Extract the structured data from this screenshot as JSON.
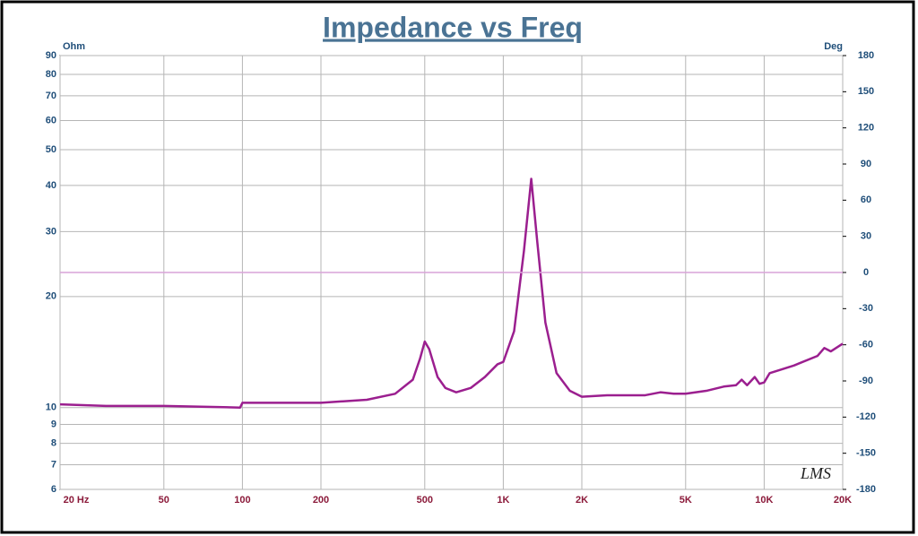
{
  "chart_data": {
    "type": "line",
    "title": "Impedance vs Freq",
    "y_label": "Ohm",
    "y2_label": "Deg",
    "logo": "LMS",
    "xscale": "log",
    "yscale": "log",
    "grid": true,
    "xlim": [
      20,
      20000
    ],
    "ylim": [
      6,
      90
    ],
    "y2lim": [
      -180,
      180
    ],
    "xticks": [
      {
        "value": 20,
        "label": "20  Hz"
      },
      50,
      100,
      200,
      500,
      {
        "value": 1000,
        "label": "1K"
      },
      {
        "value": 2000,
        "label": "2K"
      },
      {
        "value": 5000,
        "label": "5K"
      },
      {
        "value": 10000,
        "label": "10K"
      },
      {
        "value": 20000,
        "label": "20K"
      }
    ],
    "yticks": [
      6,
      7,
      8,
      9,
      10,
      20,
      30,
      40,
      50,
      60,
      70,
      80,
      90
    ],
    "y2ticks": [
      -180,
      -150,
      -120,
      -90,
      -60,
      -30,
      0,
      30,
      60,
      90,
      120,
      150,
      180
    ],
    "series": [
      {
        "color": "#9b1f8f",
        "axis": "y",
        "x": [
          20,
          30,
          50,
          98,
          100,
          200,
          300,
          385,
          450,
          480,
          500,
          520,
          560,
          600,
          660,
          750,
          850,
          950,
          1000,
          1100,
          1200,
          1280,
          1350,
          1450,
          1600,
          1800,
          2000,
          2500,
          3500,
          4000,
          4500,
          5000,
          6000,
          7000,
          7800,
          8200,
          8600,
          9200,
          9600,
          10000,
          10500,
          13000,
          16000,
          17000,
          18000,
          20000
        ],
        "values": [
          10.2,
          10.1,
          10.1,
          10.0,
          10.3,
          10.3,
          10.5,
          10.9,
          11.9,
          13.6,
          15.1,
          14.4,
          12.1,
          11.3,
          11.0,
          11.3,
          12.1,
          13.1,
          13.3,
          16.1,
          26.6,
          41.7,
          28.1,
          17.0,
          12.4,
          11.1,
          10.7,
          10.8,
          10.8,
          11.0,
          10.9,
          10.9,
          11.1,
          11.4,
          11.5,
          11.9,
          11.5,
          12.1,
          11.6,
          11.7,
          12.4,
          13.0,
          13.8,
          14.5,
          14.2,
          14.9
        ]
      },
      {
        "color": "#d9a3d9",
        "axis": "y2",
        "x": [
          20,
          20000
        ],
        "values": [
          0,
          0
        ]
      }
    ]
  }
}
